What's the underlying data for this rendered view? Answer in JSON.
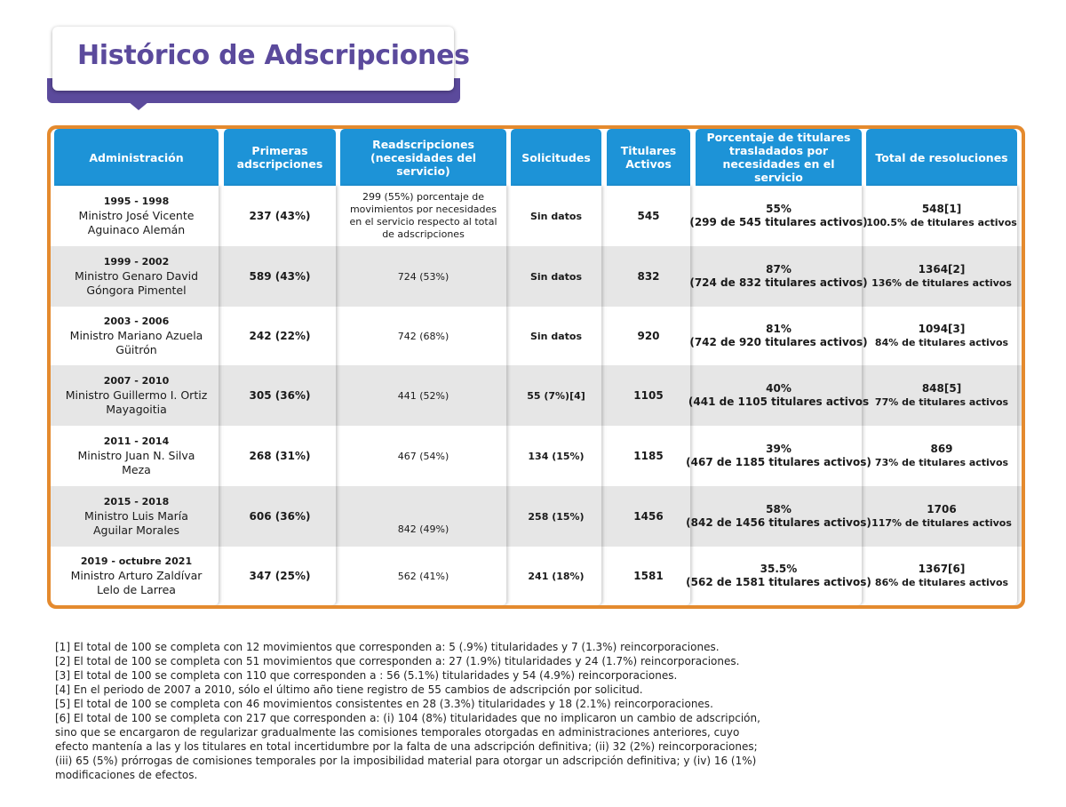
{
  "title": "Histórico de Adscripciones",
  "colors": {
    "accent_purple": "#5b4a9c",
    "frame_orange": "#e48a2e",
    "header_blue": "#1d93d7",
    "band_gray": "#e6e6e6"
  },
  "headers": {
    "administracion": "Administración",
    "primeras": "Primeras adscripciones",
    "readscripciones": "Readscripciones (necesidades del servicio)",
    "solicitudes": "Solicitudes",
    "titulares": "Titulares Activos",
    "porcentaje": "Porcentaje de titulares trasladados por necesidades en el servicio",
    "total": "Total de resoluciones"
  },
  "rows": [
    {
      "years": "1995 - 1998",
      "minister": "Ministro José Vicente Aguinaco Alemán",
      "primeras": "237 (43%)",
      "readscripciones": "299 (55%) porcentaje de movimientos por necesidades en el servicio respecto al total de adscripciones",
      "solicitudes": "Sin datos",
      "titulares": "545",
      "pct": "55%",
      "pct_detail": "(299 de 545 titulares activos)",
      "total": "548[1]",
      "total_detail": "100.5% de titulares activos"
    },
    {
      "years": "1999 - 2002",
      "minister": "Ministro Genaro David Góngora Pimentel",
      "primeras": "589 (43%)",
      "readscripciones": "724 (53%)",
      "solicitudes": "Sin datos",
      "titulares": "832",
      "pct": "87%",
      "pct_detail": "(724 de 832 titulares activos)",
      "total": "1364[2]",
      "total_detail": "136% de titulares activos"
    },
    {
      "years": "2003 - 2006",
      "minister": "Ministro Mariano Azuela Güitrón",
      "primeras": "242 (22%)",
      "readscripciones": "742 (68%)",
      "solicitudes": "Sin datos",
      "titulares": "920",
      "pct": "81%",
      "pct_detail": "(742 de 920 titulares activos)",
      "total": "1094[3]",
      "total_detail": "84% de titulares activos"
    },
    {
      "years": "2007 - 2010",
      "minister": "Ministro Guillermo I. Ortiz Mayagoitia",
      "primeras": "305 (36%)",
      "readscripciones": "441 (52%)",
      "solicitudes": "55 (7%)[4]",
      "titulares": "1105",
      "pct": "40%",
      "pct_detail": "(441 de 1105 titulares activos",
      "total": "848[5]",
      "total_detail": "77% de titulares activos"
    },
    {
      "years": "2011 - 2014",
      "minister": "Ministro Juan N. Silva Meza",
      "primeras": "268 (31%)",
      "readscripciones": "467 (54%)",
      "solicitudes": "134 (15%)",
      "titulares": "1185",
      "pct": "39%",
      "pct_detail": "(467 de 1185 titulares activos)",
      "total": "869",
      "total_detail": "73% de titulares activos"
    },
    {
      "years": "2015 - 2018",
      "minister": "Ministro Luis María Aguilar Morales",
      "primeras": "606 (36%)",
      "readscripciones": "842 (49%)",
      "solicitudes": "258 (15%)",
      "titulares": "1456",
      "pct": "58%",
      "pct_detail": "(842 de 1456 titulares activos)",
      "total": "1706",
      "total_detail": "117% de titulares activos"
    },
    {
      "years": "2019 - octubre 2021",
      "minister": "Ministro Arturo Zaldívar Lelo de Larrea",
      "primeras": "347 (25%)",
      "readscripciones": "562 (41%)",
      "solicitudes": "241 (18%)",
      "titulares": "1581",
      "pct": "35.5%",
      "pct_detail": "(562 de 1581 titulares activos)",
      "total": "1367[6]",
      "total_detail": "86% de titulares activos"
    }
  ],
  "footnotes": [
    "[1] El total de 100 se completa con 12 movimientos que corresponden a: 5 (.9%) titularidades y 7 (1.3%) reincorporaciones.",
    "[2] El total de 100 se completa con 51 movimientos que corresponden a: 27 (1.9%) titularidades y 24 (1.7%) reincorporaciones.",
    "[3] El total de 100 se completa con 110 que corresponden a : 56 (5.1%) titularidades y 54 (4.9%) reincorporaciones.",
    "[4] En el periodo de 2007 a 2010, sólo el último año tiene registro de 55 cambios de adscripción por solicitud.",
    "[5] El total de 100 se completa con 46 movimientos consistentes en 28 (3.3%) titularidades y 18 (2.1%) reincorporaciones.",
    "[6] El total de 100 se completa con 217 que corresponden a: (i) 104 (8%) titularidades que no implicaron un cambio de adscripción,",
    "sino que se encargaron de regularizar gradualmente las comisiones temporales otorgadas en administraciones anteriores, cuyo",
    "efecto mantenía a las y los titulares en total incertidumbre por la falta de una adscripción definitiva; (ii) 32 (2%) reincorporaciones;",
    "(iii) 65 (5%) prórrogas de comisiones temporales por la imposibilidad material para otorgar un adscripción definitiva; y (iv) 16 (1%)",
    "modificaciones de efectos."
  ]
}
